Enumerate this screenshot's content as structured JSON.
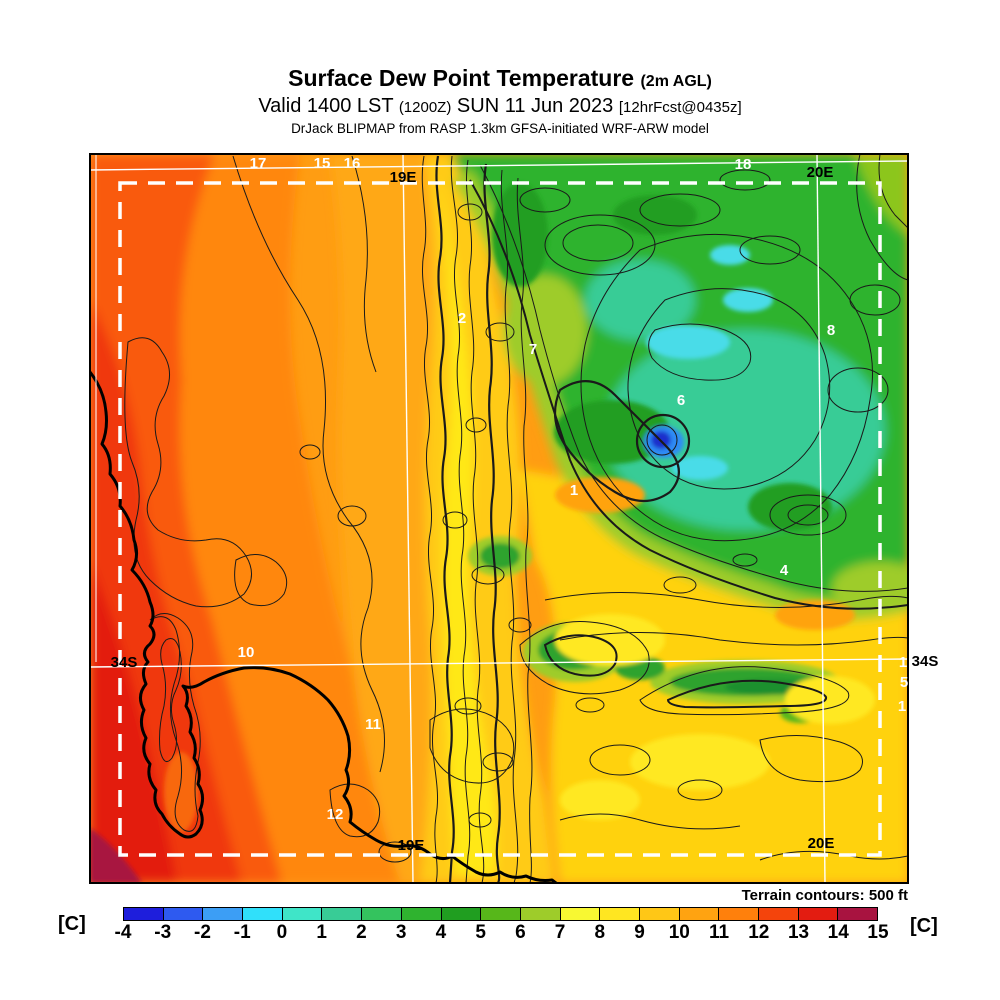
{
  "header": {
    "title": "Surface Dew Point Temperature",
    "title_suffix": "(2m AGL)",
    "valid_time": "Valid 1400 LST",
    "valid_zulu": "(1200Z)",
    "valid_date": "SUN 11 Jun 2023",
    "forecast_tag": "[12hrFcst@0435z]",
    "model_line": "DrJack BLIPMAP from RASP 1.3km GFSA-initiated WRF-ARW model"
  },
  "map": {
    "terrain_note": "Terrain contours: 500 ft",
    "grid_labels": {
      "lon_19e_top": "19E",
      "lon_20e_top": "20E",
      "lon_19e_bottom": "19E",
      "lon_20e_bottom": "20E",
      "lat_34s_left": "34S",
      "lat_34s_right": "34S"
    },
    "contour_labels": [
      {
        "text": "17"
      },
      {
        "text": "15"
      },
      {
        "text": "16"
      },
      {
        "text": "18"
      },
      {
        "text": "2"
      },
      {
        "text": "7"
      },
      {
        "text": "8"
      },
      {
        "text": "6"
      },
      {
        "text": "1"
      },
      {
        "text": "4"
      },
      {
        "text": "10"
      },
      {
        "text": "11"
      },
      {
        "text": "12"
      },
      {
        "text": "1"
      },
      {
        "text": "5"
      },
      {
        "text": "1"
      }
    ]
  },
  "colorbar": {
    "unit_left": "[C]",
    "unit_right": "[C]",
    "tick_labels": [
      "-4",
      "-3",
      "-2",
      "-1",
      "0",
      "1",
      "2",
      "3",
      "4",
      "5",
      "6",
      "7",
      "8",
      "9",
      "10",
      "11",
      "12",
      "13",
      "14",
      "15"
    ],
    "segment_colors": [
      "#1E1EDC",
      "#2E5AF0",
      "#3C9EF5",
      "#30E0FA",
      "#3FE5C8",
      "#38CC96",
      "#34C35E",
      "#2FB32F",
      "#209E20",
      "#57B71A",
      "#9ECC2A",
      "#F8F832",
      "#FFE621",
      "#FFC716",
      "#FFA311",
      "#FF800C",
      "#F4440C",
      "#E31C11",
      "#A81340"
    ]
  }
}
